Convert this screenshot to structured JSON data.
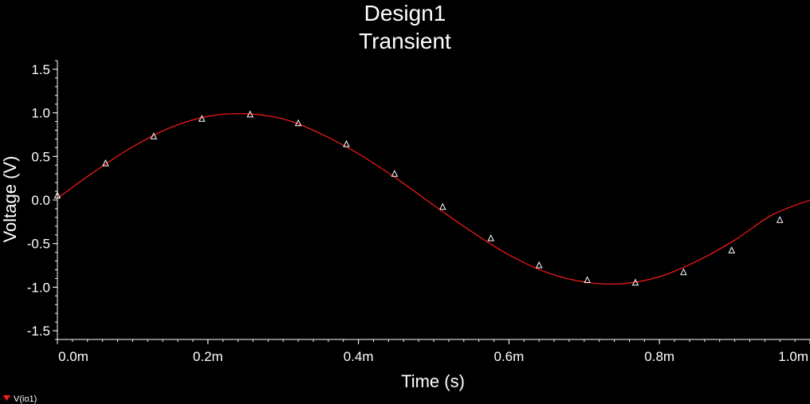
{
  "chart_data": {
    "type": "line",
    "title": "Design1",
    "subtitle": "Transient",
    "xlabel": "Time (s)",
    "ylabel": "Voltage (V)",
    "xlim": [
      0,
      0.001
    ],
    "ylim": [
      -1.6,
      1.6
    ],
    "x_ticks": [
      {
        "value": 0.0,
        "label": "0.0m"
      },
      {
        "value": 0.0002,
        "label": "0.2m"
      },
      {
        "value": 0.0004,
        "label": "0.4m"
      },
      {
        "value": 0.0006,
        "label": "0.6m"
      },
      {
        "value": 0.0008,
        "label": "0.8m"
      },
      {
        "value": 0.001,
        "label": "1.0m"
      }
    ],
    "y_ticks": [
      {
        "value": 1.5,
        "label": "1.5"
      },
      {
        "value": 1.0,
        "label": "1.0"
      },
      {
        "value": 0.5,
        "label": "0.5"
      },
      {
        "value": 0.0,
        "label": "0.0"
      },
      {
        "value": -0.5,
        "label": "-0.5"
      },
      {
        "value": -1.0,
        "label": "-1.0"
      },
      {
        "value": -1.5,
        "label": "-1.5"
      }
    ],
    "grid": false,
    "legend_position": "bottom-left",
    "series": [
      {
        "name": "V(io1)",
        "color": "#ff1a1a",
        "marker": "triangle",
        "marker_color": "#ffffff",
        "x": [
          0.0,
          5e-05,
          0.0001,
          0.00015,
          0.0002,
          0.00025,
          0.0003,
          0.00035,
          0.0004,
          0.00045,
          0.0005,
          0.00055,
          0.0006,
          0.00065,
          0.0007,
          0.00075,
          0.0008,
          0.00085,
          0.0009,
          0.00095,
          0.001
        ],
        "y": [
          0.02,
          0.33,
          0.61,
          0.83,
          0.96,
          0.99,
          0.93,
          0.76,
          0.53,
          0.25,
          -0.06,
          -0.36,
          -0.63,
          -0.83,
          -0.94,
          -0.96,
          -0.88,
          -0.7,
          -0.46,
          -0.17,
          0.0
        ],
        "markers_x": [
          0.0,
          6.4e-05,
          0.000128,
          0.000192,
          0.000256,
          0.00032,
          0.000384,
          0.000448,
          0.000512,
          0.000576,
          0.00064,
          0.000704,
          0.000768,
          0.000832,
          0.000896,
          0.00096
        ],
        "markers_y": [
          0.05,
          0.42,
          0.73,
          0.93,
          0.98,
          0.88,
          0.64,
          0.3,
          -0.08,
          -0.44,
          -0.75,
          -0.92,
          -0.95,
          -0.83,
          -0.58,
          -0.23
        ]
      }
    ]
  }
}
